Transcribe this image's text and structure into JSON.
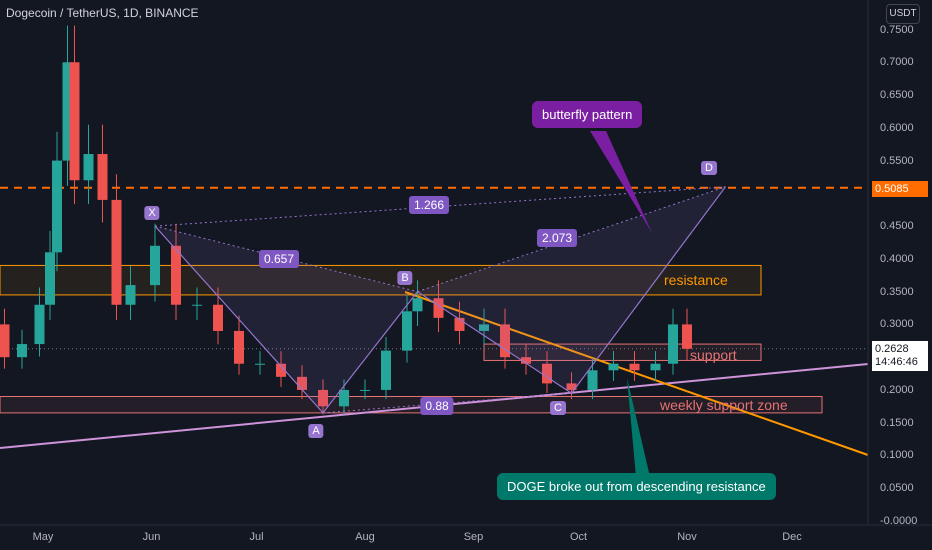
{
  "header": {
    "title": "Dogecoin / TetherUS, 1D, BINANCE",
    "currency": "USDT"
  },
  "axis": {
    "y_ticks": [
      "0.7500",
      "0.7000",
      "0.6500",
      "0.6000",
      "0.5500",
      "0.5000",
      "0.4500",
      "0.4000",
      "0.3500",
      "0.3000",
      "0.2500",
      "0.2000",
      "0.1500",
      "0.1000",
      "0.0500",
      "-0.0000"
    ],
    "x_ticks": [
      "May",
      "Jun",
      "Jul",
      "Aug",
      "Sep",
      "Oct",
      "Nov",
      "Dec"
    ]
  },
  "price_tags": {
    "level": "0.5085",
    "current": "0.2628",
    "countdown": "14:46:46"
  },
  "pattern": {
    "points": [
      "X",
      "A",
      "B",
      "C",
      "D"
    ],
    "ratios": {
      "xa_b": "0.657",
      "xd": "1.266",
      "bc_d": "2.073",
      "ac": "0.88"
    }
  },
  "annotations": {
    "resistance": "resistance",
    "support": "support",
    "weekly_support": "weekly support zone",
    "butterfly": "butterfly pattern",
    "breakout": "DOGE broke out from descending resistance"
  },
  "colors": {
    "background": "#131722",
    "up": "#26a69a",
    "down": "#ef5350",
    "pattern": "#9575cd",
    "level": "#ff6d00",
    "trend": "#ff9800",
    "support_line": "#ce93d8",
    "callout_purple": "#7b1fa2",
    "callout_teal": "#00796b"
  },
  "chart_data": {
    "type": "candlestick",
    "symbol": "DOGE/USDT",
    "interval": "1D",
    "ylim": [
      0,
      0.75
    ],
    "horizontal_levels": [
      0.5085
    ],
    "zones": [
      {
        "name": "resistance",
        "low": 0.345,
        "high": 0.39
      },
      {
        "name": "support",
        "low": 0.245,
        "high": 0.27
      },
      {
        "name": "weekly support zone",
        "low": 0.165,
        "high": 0.19
      }
    ],
    "harmonic_points": [
      {
        "label": "X",
        "date": "2021-06-02",
        "price": 0.45
      },
      {
        "label": "A",
        "date": "2021-07-20",
        "price": 0.165
      },
      {
        "label": "B",
        "date": "2021-08-16",
        "price": 0.35
      },
      {
        "label": "C",
        "date": "2021-09-29",
        "price": 0.195
      },
      {
        "label": "D",
        "date": "2021-11-12",
        "price": 0.51
      }
    ],
    "last_price": 0.2628,
    "candles": [
      {
        "date": "2021-04-15",
        "close": 0.3
      },
      {
        "date": "2021-04-20",
        "close": 0.25
      },
      {
        "date": "2021-04-25",
        "close": 0.27
      },
      {
        "date": "2021-04-30",
        "close": 0.33
      },
      {
        "date": "2021-05-03",
        "close": 0.41
      },
      {
        "date": "2021-05-05",
        "close": 0.55
      },
      {
        "date": "2021-05-08",
        "close": 0.7
      },
      {
        "date": "2021-05-10",
        "close": 0.52
      },
      {
        "date": "2021-05-14",
        "close": 0.56
      },
      {
        "date": "2021-05-18",
        "close": 0.49
      },
      {
        "date": "2021-05-22",
        "close": 0.33
      },
      {
        "date": "2021-05-26",
        "close": 0.36
      },
      {
        "date": "2021-06-02",
        "close": 0.42
      },
      {
        "date": "2021-06-08",
        "close": 0.33
      },
      {
        "date": "2021-06-14",
        "close": 0.33
      },
      {
        "date": "2021-06-20",
        "close": 0.29
      },
      {
        "date": "2021-06-26",
        "close": 0.24
      },
      {
        "date": "2021-07-02",
        "close": 0.24
      },
      {
        "date": "2021-07-08",
        "close": 0.22
      },
      {
        "date": "2021-07-14",
        "close": 0.2
      },
      {
        "date": "2021-07-20",
        "close": 0.175
      },
      {
        "date": "2021-07-26",
        "close": 0.2
      },
      {
        "date": "2021-08-01",
        "close": 0.2
      },
      {
        "date": "2021-08-07",
        "close": 0.26
      },
      {
        "date": "2021-08-13",
        "close": 0.32
      },
      {
        "date": "2021-08-16",
        "close": 0.34
      },
      {
        "date": "2021-08-22",
        "close": 0.31
      },
      {
        "date": "2021-08-28",
        "close": 0.29
      },
      {
        "date": "2021-09-04",
        "close": 0.3
      },
      {
        "date": "2021-09-10",
        "close": 0.25
      },
      {
        "date": "2021-09-16",
        "close": 0.24
      },
      {
        "date": "2021-09-22",
        "close": 0.21
      },
      {
        "date": "2021-09-29",
        "close": 0.2
      },
      {
        "date": "2021-10-05",
        "close": 0.23
      },
      {
        "date": "2021-10-11",
        "close": 0.24
      },
      {
        "date": "2021-10-17",
        "close": 0.23
      },
      {
        "date": "2021-10-23",
        "close": 0.24
      },
      {
        "date": "2021-10-28",
        "close": 0.3
      },
      {
        "date": "2021-11-01",
        "close": 0.2628
      }
    ]
  }
}
